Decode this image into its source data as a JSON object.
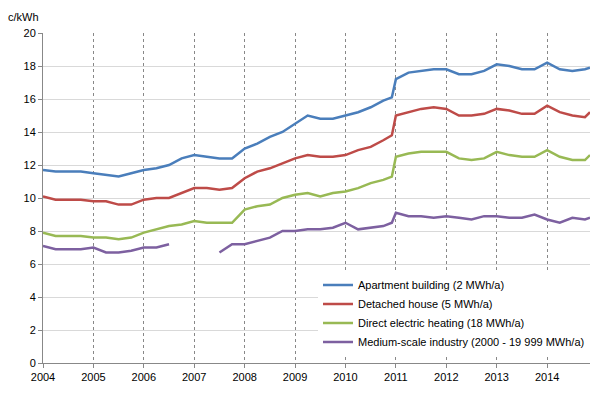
{
  "chart_data": {
    "type": "line",
    "y_label": "c/kWh",
    "x": [
      2004,
      2004.25,
      2004.5,
      2004.75,
      2005,
      2005.25,
      2005.5,
      2005.75,
      2006,
      2006.25,
      2006.5,
      2006.75,
      2007,
      2007.25,
      2007.5,
      2007.75,
      2008,
      2008.25,
      2008.5,
      2008.75,
      2009,
      2009.25,
      2009.5,
      2009.75,
      2010,
      2010.25,
      2010.5,
      2010.75,
      2010.92,
      2011,
      2011.25,
      2011.5,
      2011.75,
      2012,
      2012.25,
      2012.5,
      2012.75,
      2013,
      2013.25,
      2013.5,
      2013.75,
      2014,
      2014.25,
      2014.5,
      2014.75,
      2014.85
    ],
    "series": [
      {
        "name": "Apartment building (2 MWh/a)",
        "color": "#4a7ebb",
        "values": [
          11.7,
          11.6,
          11.6,
          11.6,
          11.5,
          11.4,
          11.3,
          11.5,
          11.7,
          11.8,
          12.0,
          12.4,
          12.6,
          12.5,
          12.4,
          12.4,
          13.0,
          13.3,
          13.7,
          14.0,
          14.5,
          15.0,
          14.8,
          14.8,
          15.0,
          15.2,
          15.5,
          15.9,
          16.1,
          17.2,
          17.6,
          17.7,
          17.8,
          17.8,
          17.5,
          17.5,
          17.7,
          18.1,
          18.0,
          17.8,
          17.8,
          18.2,
          17.8,
          17.7,
          17.8,
          17.9
        ]
      },
      {
        "name": "Detached house (5 MWh/a)",
        "color": "#be4b48",
        "values": [
          10.1,
          9.9,
          9.9,
          9.9,
          9.8,
          9.8,
          9.6,
          9.6,
          9.9,
          10.0,
          10.0,
          10.3,
          10.6,
          10.6,
          10.5,
          10.6,
          11.2,
          11.6,
          11.8,
          12.1,
          12.4,
          12.6,
          12.5,
          12.5,
          12.6,
          12.9,
          13.1,
          13.5,
          13.8,
          15.0,
          15.2,
          15.4,
          15.5,
          15.4,
          15.0,
          15.0,
          15.1,
          15.4,
          15.3,
          15.1,
          15.1,
          15.6,
          15.2,
          15.0,
          14.9,
          15.2
        ]
      },
      {
        "name": "Direct electric heating (18 MWh/a)",
        "color": "#98b954",
        "values": [
          7.9,
          7.7,
          7.7,
          7.7,
          7.6,
          7.6,
          7.5,
          7.6,
          7.9,
          8.1,
          8.3,
          8.4,
          8.6,
          8.5,
          8.5,
          8.5,
          9.3,
          9.5,
          9.6,
          10.0,
          10.2,
          10.3,
          10.1,
          10.3,
          10.4,
          10.6,
          10.9,
          11.1,
          11.3,
          12.5,
          12.7,
          12.8,
          12.8,
          12.8,
          12.4,
          12.3,
          12.4,
          12.8,
          12.6,
          12.5,
          12.5,
          12.9,
          12.5,
          12.3,
          12.3,
          12.6
        ]
      },
      {
        "name": "Medium-scale industry (2000 - 19 999 MWh/a)",
        "color": "#7d60a0",
        "values": [
          7.1,
          6.9,
          6.9,
          6.9,
          7.0,
          6.7,
          6.7,
          6.8,
          7.0,
          7.0,
          7.2,
          null,
          null,
          null,
          6.7,
          7.2,
          7.2,
          7.4,
          7.6,
          8.0,
          8.0,
          8.1,
          8.1,
          8.2,
          8.5,
          8.1,
          8.2,
          8.3,
          8.5,
          9.1,
          8.9,
          8.9,
          8.8,
          8.9,
          8.8,
          8.7,
          8.9,
          8.9,
          8.8,
          8.8,
          9.0,
          8.7,
          8.5,
          8.8,
          8.7,
          8.8
        ]
      }
    ],
    "xlim": [
      2004,
      2014.85
    ],
    "xticks": [
      2004,
      2005,
      2006,
      2007,
      2008,
      2009,
      2010,
      2011,
      2012,
      2013,
      2014
    ],
    "ylim": [
      0,
      20
    ],
    "yticks": [
      0,
      2,
      4,
      6,
      8,
      10,
      12,
      14,
      16,
      18,
      20
    ],
    "grid": true,
    "legend": "bottom right"
  }
}
